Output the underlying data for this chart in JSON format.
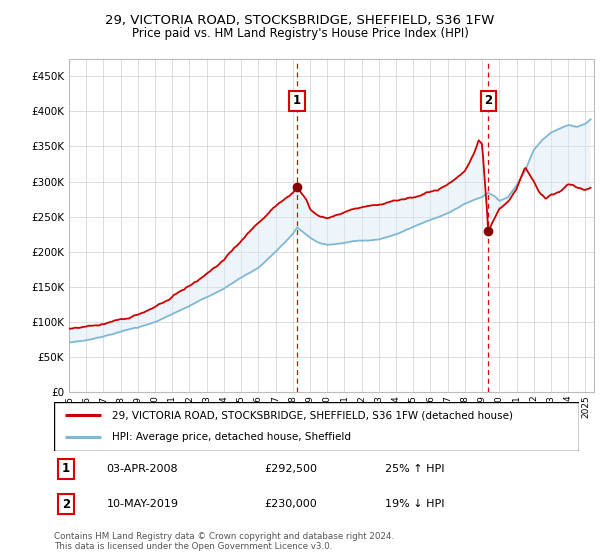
{
  "title": "29, VICTORIA ROAD, STOCKSBRIDGE, SHEFFIELD, S36 1FW",
  "subtitle": "Price paid vs. HM Land Registry's House Price Index (HPI)",
  "yticks": [
    0,
    50000,
    100000,
    150000,
    200000,
    250000,
    300000,
    350000,
    400000,
    450000
  ],
  "ytick_labels": [
    "£0",
    "£50K",
    "£100K",
    "£150K",
    "£200K",
    "£250K",
    "£300K",
    "£350K",
    "£400K",
    "£450K"
  ],
  "xlim_min": 1995,
  "xlim_max": 2025.5,
  "ylim_min": 0,
  "ylim_max": 475000,
  "sale1_x": 2008.25,
  "sale1_y": 292500,
  "sale2_x": 2019.37,
  "sale2_y": 230000,
  "hpi_at_sale1": 234000,
  "hpi_at_sale2": 283951,
  "hpi_color": "#7eb8d4",
  "price_color": "#cc0000",
  "shade_color": "#daeaf5",
  "vline_color": "#dd0000",
  "legend_label1": "29, VICTORIA ROAD, STOCKSBRIDGE, SHEFFIELD, S36 1FW (detached house)",
  "legend_label2": "HPI: Average price, detached house, Sheffield",
  "annotation1_date": "03-APR-2008",
  "annotation1_price": "£292,500",
  "annotation1_hpi": "25% ↑ HPI",
  "annotation2_date": "10-MAY-2019",
  "annotation2_price": "£230,000",
  "annotation2_hpi": "19% ↓ HPI",
  "footer": "Contains HM Land Registry data © Crown copyright and database right 2024.\nThis data is licensed under the Open Government Licence v3.0."
}
